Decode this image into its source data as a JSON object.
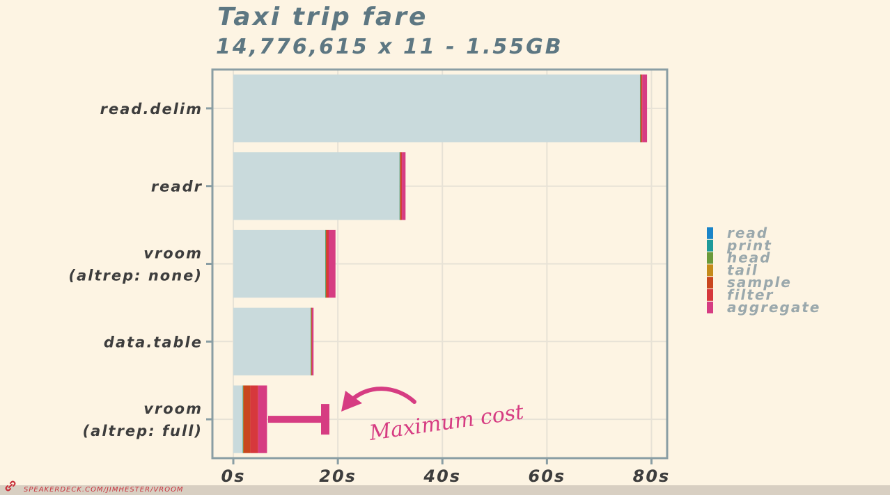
{
  "slide": {
    "title": "Taxi trip fare",
    "subtitle": "14,776,615 x 11 - 1.55GB",
    "annotation": "Maximum cost",
    "footer_link": "SPEAKERDECK.COM/JIMHESTER/VROOM",
    "footer_icon": "link-icon"
  },
  "colors": {
    "background": "#fdf4e3",
    "panel_border": "#8a9ea4",
    "grid": "#e7e2d6",
    "base_bar": "#c9dadc",
    "annotation": "#d63c82"
  },
  "chart_data": {
    "type": "bar",
    "orientation": "horizontal",
    "stacked": true,
    "title": "Taxi trip fare",
    "subtitle": "14,776,615 x 11 - 1.55GB",
    "categories": [
      "read.delim",
      "readr",
      "vroom\n(altrep: none)",
      "data.table",
      "vroom\n(altrep: full)"
    ],
    "xlim": [
      -4,
      83
    ],
    "x_ticks": [
      0,
      20,
      40,
      60,
      80
    ],
    "x_tick_labels": [
      "0s",
      "20s",
      "40s",
      "60s",
      "80s"
    ],
    "grid": true,
    "legend_position": "right",
    "series": [
      {
        "name": "read",
        "color": "#c9dadc",
        "legend_color": "#1a84c8",
        "values": [
          77.8,
          31.8,
          17.6,
          14.8,
          1.8
        ]
      },
      {
        "name": "print",
        "color": "#1e9a9a",
        "values": [
          0.05,
          0.05,
          0.05,
          0.05,
          0.05
        ]
      },
      {
        "name": "head",
        "color": "#6a9a3a",
        "values": [
          0.05,
          0.05,
          0.05,
          0.05,
          0.05
        ]
      },
      {
        "name": "tail",
        "color": "#c48a1a",
        "values": [
          0.05,
          0.05,
          0.05,
          0.05,
          0.05
        ]
      },
      {
        "name": "sample",
        "color": "#c9461e",
        "values": [
          0.1,
          0.1,
          0.1,
          0.05,
          1.3
        ]
      },
      {
        "name": "filter",
        "color": "#d6383c",
        "values": [
          0.2,
          0.2,
          0.4,
          0.05,
          1.5
        ]
      },
      {
        "name": "aggregate",
        "color": "#d63c82",
        "values": [
          0.9,
          0.7,
          1.3,
          0.3,
          1.7
        ]
      }
    ]
  }
}
